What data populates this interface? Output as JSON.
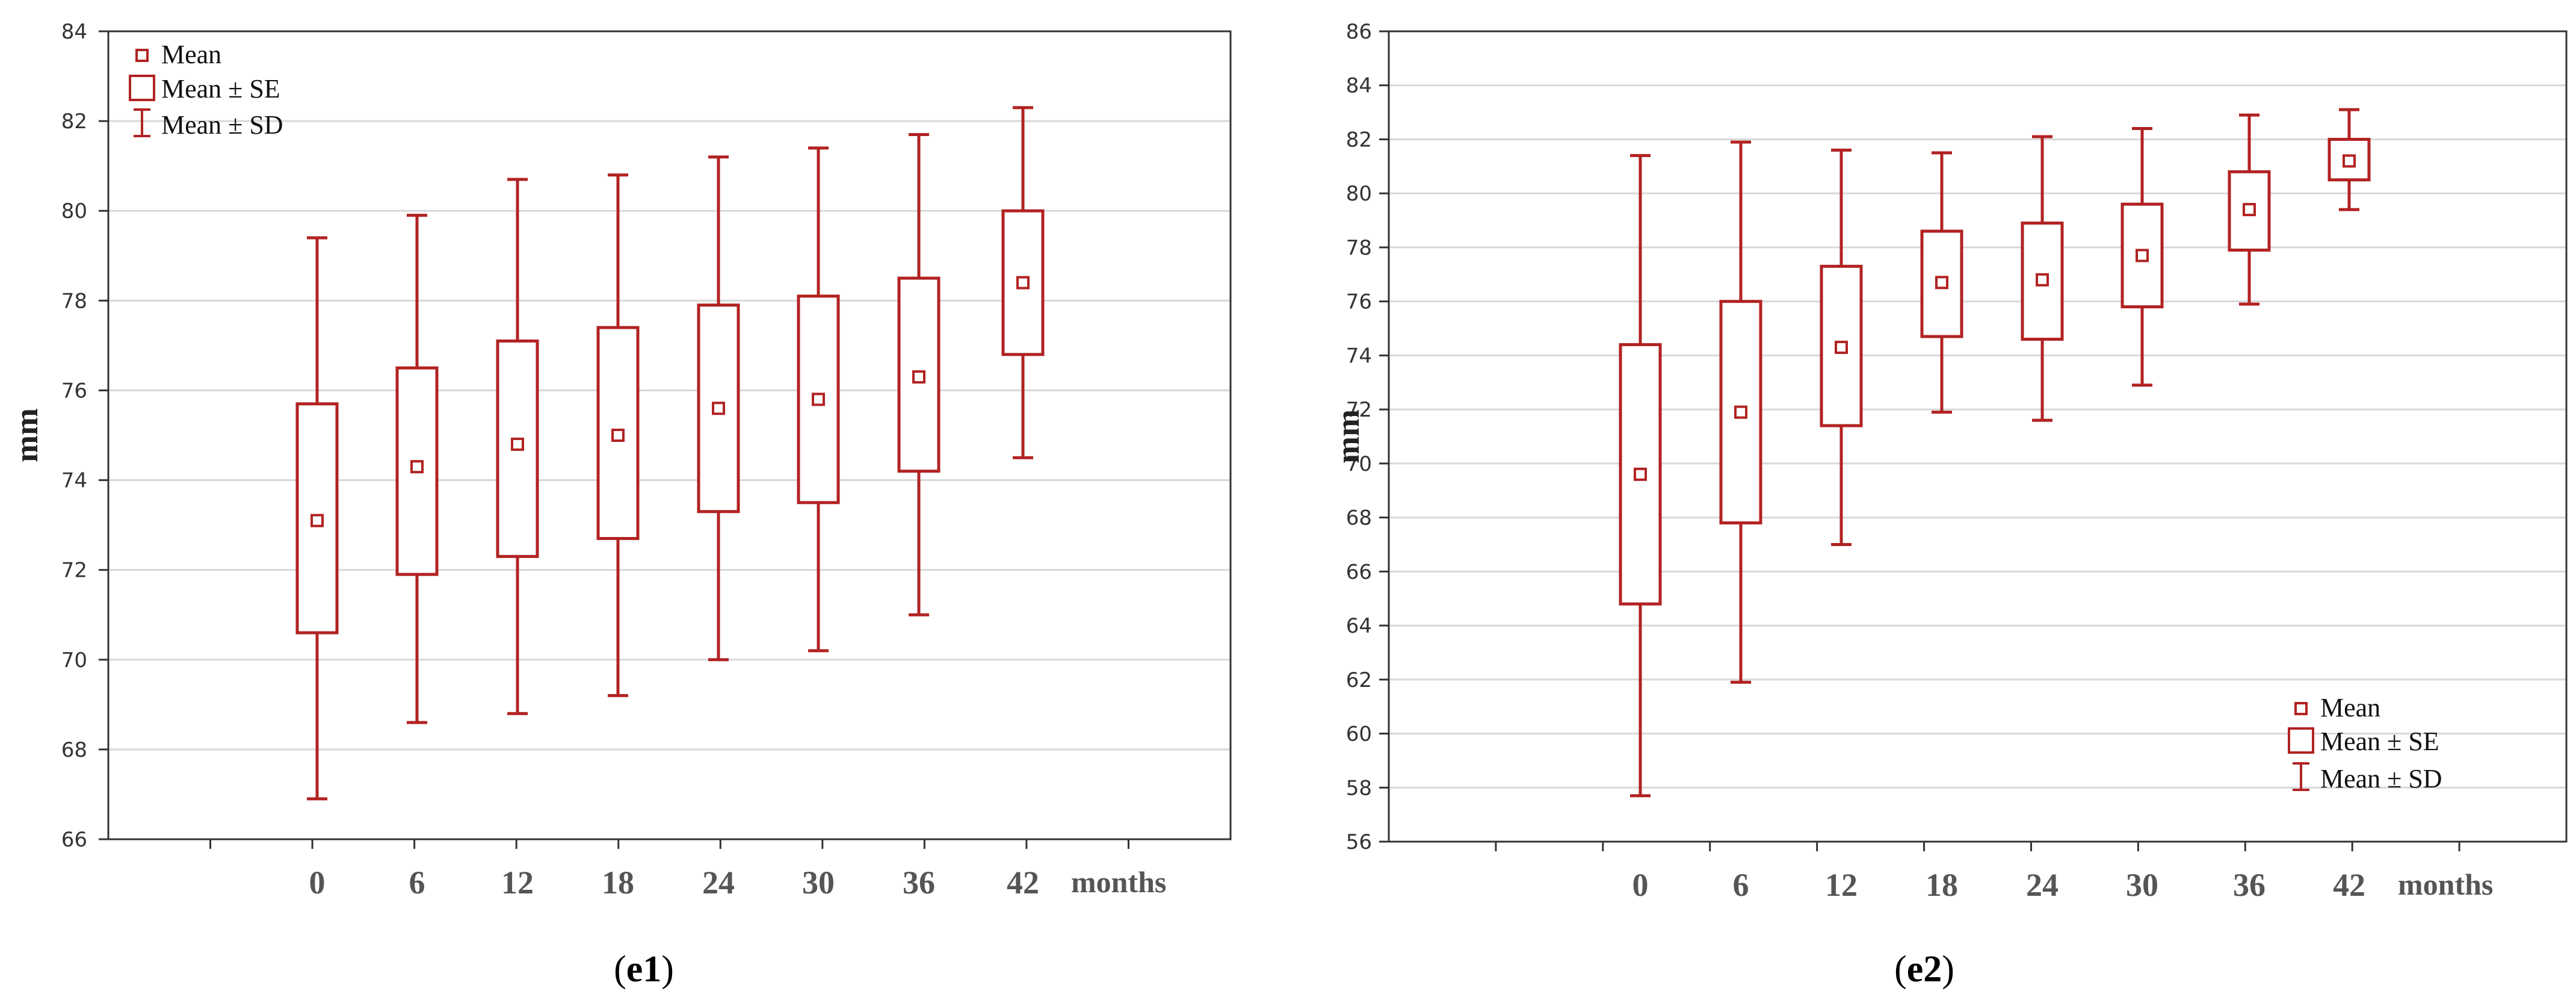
{
  "colors": {
    "series": "#b22222",
    "grid": "#d8d8d8",
    "axis": "#333333"
  },
  "legend": {
    "mean": "Mean",
    "mean_se": "Mean ± SE",
    "mean_sd": "Mean ± SD"
  },
  "chart_data": [
    {
      "type": "boxplot",
      "panel_label": "e1",
      "ylabel": "mm",
      "xunit": "months",
      "categories": [
        "0",
        "6",
        "12",
        "18",
        "24",
        "30",
        "36",
        "42"
      ],
      "ylim": [
        66,
        84
      ],
      "yticks": [
        66,
        68,
        70,
        72,
        74,
        76,
        78,
        80,
        82,
        84
      ],
      "legend_position": "top-left",
      "mean": [
        73.1,
        74.3,
        74.8,
        75.0,
        75.6,
        75.8,
        76.3,
        78.4
      ],
      "se_low": [
        70.6,
        71.9,
        72.3,
        72.7,
        73.3,
        73.5,
        74.2,
        76.8
      ],
      "se_high": [
        75.7,
        76.5,
        77.1,
        77.4,
        77.9,
        78.1,
        78.5,
        80.0
      ],
      "sd_low": [
        66.9,
        68.6,
        68.8,
        69.2,
        70.0,
        70.2,
        71.0,
        74.5
      ],
      "sd_high": [
        79.4,
        79.9,
        80.7,
        80.8,
        81.2,
        81.4,
        81.7,
        82.3
      ]
    },
    {
      "type": "boxplot",
      "panel_label": "e2",
      "ylabel": "mm",
      "xunit": "months",
      "categories": [
        "0",
        "6",
        "12",
        "18",
        "24",
        "30",
        "36",
        "42"
      ],
      "ylim": [
        56,
        86
      ],
      "yticks": [
        56,
        58,
        60,
        62,
        64,
        66,
        68,
        70,
        72,
        74,
        76,
        78,
        80,
        82,
        84,
        86
      ],
      "legend_position": "bottom-right",
      "mean": [
        69.6,
        71.9,
        74.3,
        76.7,
        76.8,
        77.7,
        79.4,
        81.2
      ],
      "se_low": [
        64.8,
        67.8,
        71.4,
        74.7,
        74.6,
        75.8,
        77.9,
        80.5
      ],
      "se_high": [
        74.4,
        76.0,
        77.3,
        78.6,
        78.9,
        79.6,
        80.8,
        82.0
      ],
      "sd_low": [
        57.7,
        61.9,
        67.0,
        71.9,
        71.6,
        72.9,
        75.9,
        79.4
      ],
      "sd_high": [
        81.4,
        81.9,
        81.6,
        81.5,
        82.1,
        82.4,
        82.9,
        83.1
      ]
    }
  ]
}
